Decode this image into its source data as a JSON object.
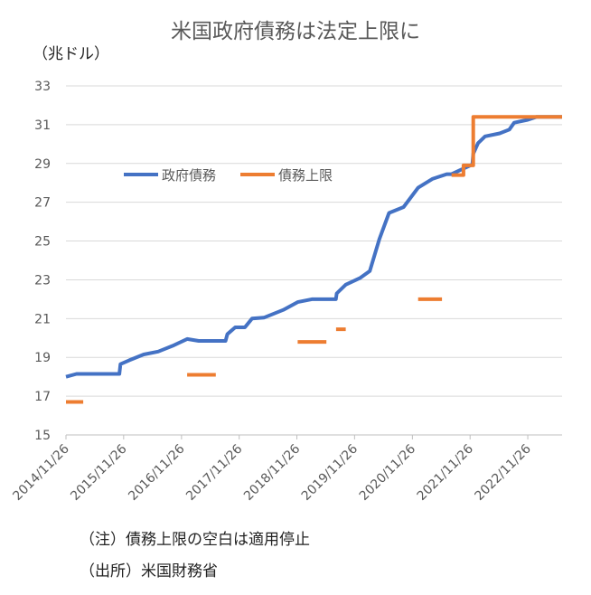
{
  "chart_data": {
    "type": "line",
    "title": "米国政府債務は法定上限に",
    "ylabel": "（兆ドル）",
    "ylim": [
      15,
      33
    ],
    "yticks": [
      15,
      17,
      19,
      21,
      23,
      25,
      27,
      29,
      31,
      33
    ],
    "xticks": [
      "2014/11/26",
      "2015/11/26",
      "2016/11/26",
      "2017/11/26",
      "2018/11/26",
      "2019/11/26",
      "2020/11/26",
      "2021/11/26",
      "2022/11/26"
    ],
    "xlim": [
      "2014/11/26",
      "2023/07/01"
    ],
    "grid": true,
    "legend_position": "upper-left",
    "series": [
      {
        "name": "政府債務",
        "color": "#4472C4",
        "points": [
          [
            "2014/11/26",
            18.0
          ],
          [
            "2015/02/01",
            18.15
          ],
          [
            "2015/10/30",
            18.15
          ],
          [
            "2015/11/06",
            18.65
          ],
          [
            "2016/01/01",
            18.85
          ],
          [
            "2016/04/01",
            19.15
          ],
          [
            "2016/07/01",
            19.3
          ],
          [
            "2016/10/01",
            19.6
          ],
          [
            "2017/01/01",
            19.95
          ],
          [
            "2017/03/15",
            19.85
          ],
          [
            "2017/09/01",
            19.85
          ],
          [
            "2017/09/12",
            20.2
          ],
          [
            "2017/11/01",
            20.55
          ],
          [
            "2018/01/01",
            20.55
          ],
          [
            "2018/02/15",
            21.0
          ],
          [
            "2018/05/01",
            21.05
          ],
          [
            "2018/09/01",
            21.45
          ],
          [
            "2018/12/01",
            21.85
          ],
          [
            "2019/03/01",
            22.0
          ],
          [
            "2019/07/31",
            22.0
          ],
          [
            "2019/08/05",
            22.3
          ],
          [
            "2019/10/01",
            22.75
          ],
          [
            "2020/01/01",
            23.1
          ],
          [
            "2020/03/01",
            23.45
          ],
          [
            "2020/05/01",
            25.1
          ],
          [
            "2020/07/01",
            26.45
          ],
          [
            "2020/10/01",
            26.75
          ],
          [
            "2021/01/01",
            27.75
          ],
          [
            "2021/04/01",
            28.2
          ],
          [
            "2021/07/01",
            28.45
          ],
          [
            "2021/07/31",
            28.45
          ],
          [
            "2021/12/10",
            28.95
          ],
          [
            "2021/12/16",
            29.5
          ],
          [
            "2022/01/15",
            30.05
          ],
          [
            "2022/03/01",
            30.4
          ],
          [
            "2022/06/01",
            30.55
          ],
          [
            "2022/08/01",
            30.75
          ],
          [
            "2022/09/01",
            31.1
          ],
          [
            "2022/11/26",
            31.25
          ],
          [
            "2023/01/19",
            31.4
          ],
          [
            "2023/07/01",
            31.4
          ]
        ]
      },
      {
        "name": "債務上限",
        "color": "#ED7D31",
        "points": [
          [
            "2014/11/26",
            16.7
          ],
          [
            "2015/03/15",
            16.7
          ],
          null,
          [
            "2017/01/01",
            18.1
          ],
          [
            "2017/07/01",
            18.1
          ],
          null,
          [
            "2018/12/01",
            19.8
          ],
          [
            "2019/06/01",
            19.8
          ],
          null,
          [
            "2019/08/01",
            20.45
          ],
          [
            "2019/10/01",
            20.45
          ],
          null,
          [
            "2021/01/01",
            22.0
          ],
          [
            "2021/06/01",
            22.0
          ],
          null,
          [
            "2021/08/01",
            28.4
          ],
          [
            "2021/10/15",
            28.4
          ],
          [
            "2021/10/15",
            28.9
          ],
          [
            "2021/12/16",
            28.9
          ],
          [
            "2021/12/16",
            31.4
          ],
          [
            "2023/07/01",
            31.4
          ]
        ]
      }
    ]
  },
  "notes": [
    "（注）債務上限の空白は適用停止",
    "（出所）米国財務省"
  ]
}
